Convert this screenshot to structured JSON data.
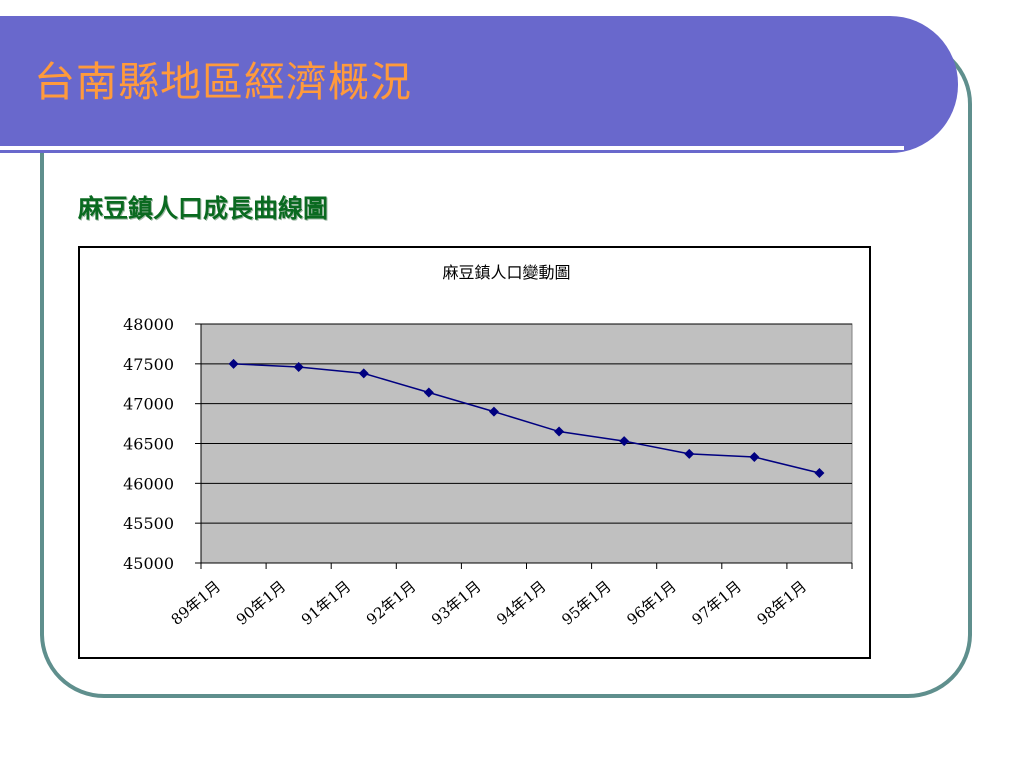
{
  "slide": {
    "title": "台南縣地區經濟概況",
    "subtitle": "麻豆鎮人口成長曲線圖"
  },
  "colors": {
    "title_bar": "#6968cc",
    "title_text": "#ff9a3c",
    "subtitle_text": "#0a6a20",
    "frame": "#5f8f8d",
    "plot_area": "#c0c0c0",
    "series_line": "#000080"
  },
  "chart_data": {
    "type": "line",
    "title": "麻豆鎮人口變動圖",
    "categories": [
      "89年1月",
      "90年1月",
      "91年1月",
      "92年1月",
      "93年1月",
      "94年1月",
      "95年1月",
      "96年1月",
      "97年1月",
      "98年1月"
    ],
    "series": [
      {
        "values": [
          47500,
          47460,
          47380,
          47140,
          46900,
          46650,
          46530,
          46370,
          46330,
          46130
        ]
      }
    ],
    "y_ticks": [
      45000,
      45500,
      46000,
      46500,
      47000,
      47500,
      48000
    ],
    "ylim": [
      45000,
      48000
    ],
    "grid": true,
    "legend": "none",
    "marker": "diamond"
  }
}
